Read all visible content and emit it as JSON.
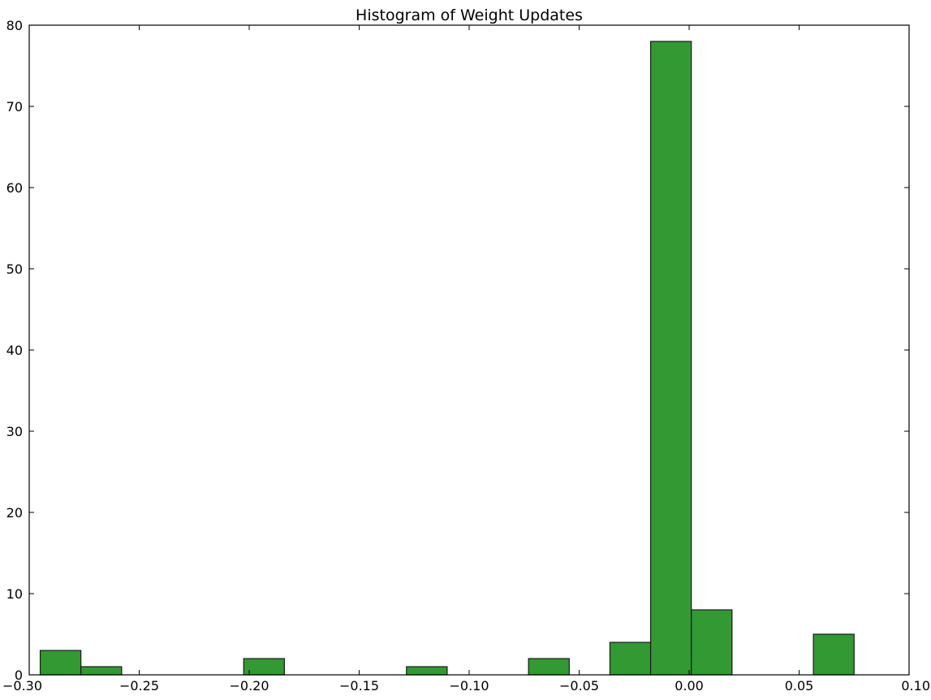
{
  "chart_data": {
    "type": "bar",
    "title": "Histogram of Weight Updates",
    "xlabel": "",
    "ylabel": "",
    "xlim": [
      -0.3,
      0.1
    ],
    "ylim": [
      0,
      80
    ],
    "x_ticks": [
      -0.3,
      -0.25,
      -0.2,
      -0.15,
      -0.1,
      -0.05,
      0.0,
      0.05,
      0.1
    ],
    "x_tick_labels": [
      "−0.30",
      "−0.25",
      "−0.20",
      "−0.15",
      "−0.10",
      "−0.05",
      "0.00",
      "0.05",
      "0.10"
    ],
    "y_ticks": [
      0,
      10,
      20,
      30,
      40,
      50,
      60,
      70,
      80
    ],
    "y_tick_labels": [
      "0",
      "10",
      "20",
      "30",
      "40",
      "50",
      "60",
      "70",
      "80"
    ],
    "grid": false,
    "bar_color": "#339933",
    "bar_edge_color": "#1a1a1a",
    "bins": [
      {
        "x0": -0.295,
        "x1": -0.2765,
        "count": 3
      },
      {
        "x0": -0.2765,
        "x1": -0.258,
        "count": 1
      },
      {
        "x0": -0.258,
        "x1": -0.2395,
        "count": 0
      },
      {
        "x0": -0.2395,
        "x1": -0.221,
        "count": 0
      },
      {
        "x0": -0.221,
        "x1": -0.2025,
        "count": 0
      },
      {
        "x0": -0.2025,
        "x1": -0.184,
        "count": 2
      },
      {
        "x0": -0.184,
        "x1": -0.1655,
        "count": 0
      },
      {
        "x0": -0.1655,
        "x1": -0.147,
        "count": 0
      },
      {
        "x0": -0.147,
        "x1": -0.1285,
        "count": 0
      },
      {
        "x0": -0.1285,
        "x1": -0.11,
        "count": 1
      },
      {
        "x0": -0.11,
        "x1": -0.0915,
        "count": 0
      },
      {
        "x0": -0.0915,
        "x1": -0.073,
        "count": 0
      },
      {
        "x0": -0.073,
        "x1": -0.0545,
        "count": 2
      },
      {
        "x0": -0.0545,
        "x1": -0.036,
        "count": 0
      },
      {
        "x0": -0.036,
        "x1": -0.0175,
        "count": 4
      },
      {
        "x0": -0.0175,
        "x1": 0.001,
        "count": 78
      },
      {
        "x0": 0.001,
        "x1": 0.0195,
        "count": 8
      },
      {
        "x0": 0.0195,
        "x1": 0.038,
        "count": 0
      },
      {
        "x0": 0.038,
        "x1": 0.0565,
        "count": 0
      },
      {
        "x0": 0.0565,
        "x1": 0.075,
        "count": 5
      }
    ]
  }
}
